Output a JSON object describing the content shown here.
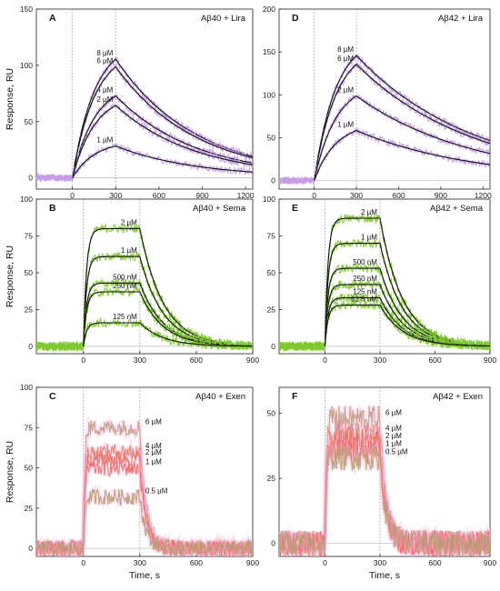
{
  "figure": {
    "ylabel": "Response, RU",
    "xlabel": "Time, s"
  },
  "chart_data": [
    {
      "id": "A",
      "type": "line",
      "title": "Aβ40 + Lira",
      "xlim": [
        -250,
        1250
      ],
      "ylim": [
        -10,
        150
      ],
      "xticks": [
        0,
        300,
        600,
        900,
        1200
      ],
      "yticks": [
        0,
        50,
        100,
        150
      ],
      "injection_start": 0,
      "injection_end": 300,
      "dissociation_end": 1250,
      "kon": 0.0065,
      "koff": 0.0018,
      "fit_curves": true,
      "noise": 3,
      "color": "#c59ae6",
      "fit_color": "#111111",
      "series": [
        {
          "name": "8 µM",
          "plateau": 123
        },
        {
          "name": "6 µM",
          "plateau": 115
        },
        {
          "name": "4 µM",
          "plateau": 85
        },
        {
          "name": "2 µM",
          "plateau": 75
        },
        {
          "name": "1 µM",
          "plateau": 33
        }
      ]
    },
    {
      "id": "D",
      "type": "line",
      "title": "Aβ42 + Lira",
      "xlim": [
        -250,
        1250
      ],
      "ylim": [
        -10,
        200
      ],
      "xticks": [
        0,
        300,
        600,
        900,
        1200
      ],
      "yticks": [
        0,
        50,
        100,
        150,
        200
      ],
      "injection_start": 0,
      "injection_end": 300,
      "dissociation_end": 1250,
      "kon": 0.0065,
      "koff": 0.0012,
      "fit_curves": true,
      "noise": 4,
      "color": "#c59ae6",
      "fit_color": "#111111",
      "series": [
        {
          "name": "8 µM",
          "plateau": 170
        },
        {
          "name": "6 µM",
          "plateau": 158
        },
        {
          "name": "2 µM",
          "plateau": 115
        },
        {
          "name": "1 µM",
          "plateau": 68
        }
      ]
    },
    {
      "id": "B",
      "type": "line",
      "title": "Aβ40 + Sema",
      "xlim": [
        -250,
        900
      ],
      "ylim": [
        -5,
        100
      ],
      "xticks": [
        0,
        300,
        600,
        900
      ],
      "yticks": [
        0,
        25,
        50,
        75,
        100
      ],
      "injection_start": 0,
      "injection_end": 300,
      "dissociation_end": 900,
      "kon": 0.06,
      "koff": 0.008,
      "fit_curves": true,
      "noise": 3,
      "color": "#7fc832",
      "fit_color": "#111111",
      "series": [
        {
          "name": "2 µM",
          "plateau": 80
        },
        {
          "name": "1 µM",
          "plateau": 61
        },
        {
          "name": "500 nM",
          "plateau": 43
        },
        {
          "name": "250 nM",
          "plateau": 37
        },
        {
          "name": "125 nM",
          "plateau": 16
        }
      ]
    },
    {
      "id": "E",
      "type": "line",
      "title": "Aβ42 + Sema",
      "xlim": [
        -250,
        900
      ],
      "ylim": [
        -5,
        100
      ],
      "xticks": [
        0,
        300,
        600,
        900
      ],
      "yticks": [
        0,
        25,
        50,
        75,
        100
      ],
      "injection_start": 0,
      "injection_end": 300,
      "dissociation_end": 900,
      "kon": 0.06,
      "koff": 0.008,
      "fit_curves": true,
      "noise": 3,
      "color": "#7fc832",
      "fit_color": "#111111",
      "series": [
        {
          "name": "2 µM",
          "plateau": 87
        },
        {
          "name": "1 µM",
          "plateau": 70
        },
        {
          "name": "500 nM",
          "plateau": 53
        },
        {
          "name": "250 nM",
          "plateau": 42
        },
        {
          "name": "125 nM",
          "plateau": 33
        },
        {
          "name": "62.5 nM",
          "plateau": 28
        }
      ]
    },
    {
      "id": "C",
      "type": "line",
      "title": "Aβ40 + Exen",
      "xlim": [
        -250,
        900
      ],
      "ylim": [
        -5,
        100
      ],
      "xticks": [
        0,
        300,
        600,
        900
      ],
      "yticks": [
        0,
        25,
        50,
        75,
        100
      ],
      "injection_start": 0,
      "injection_end": 300,
      "dissociation_end": 900,
      "kon": 0.15,
      "koff": 0.03,
      "fit_curves": false,
      "noise": 5,
      "glow_color": "#f7b8de",
      "series": [
        {
          "name": "6 µM",
          "plateau": 75,
          "color": "#c49a86"
        },
        {
          "name": "4 µM",
          "plateau": 60,
          "color": "#de7f72"
        },
        {
          "name": "2 µM",
          "plateau": 56,
          "color": "#e8705a"
        },
        {
          "name": "1 µM",
          "plateau": 50,
          "color": "#ed6a6a"
        },
        {
          "name": "0.5 µM",
          "plateau": 32,
          "color": "#b89a72"
        }
      ]
    },
    {
      "id": "F",
      "type": "line",
      "title": "Aβ42 + Exen",
      "xlim": [
        -250,
        900
      ],
      "ylim": [
        -5,
        60
      ],
      "xticks": [
        0,
        300,
        600,
        900
      ],
      "yticks": [
        0,
        25,
        50
      ],
      "injection_start": 0,
      "injection_end": 300,
      "dissociation_end": 900,
      "kon": 0.15,
      "koff": 0.03,
      "fit_curves": false,
      "noise": 5,
      "glow_color": "#f7b8de",
      "series": [
        {
          "name": "6 µM",
          "plateau": 48,
          "color": "#c49a86"
        },
        {
          "name": "4 µM",
          "plateau": 42,
          "color": "#de7f72"
        },
        {
          "name": "2 µM",
          "plateau": 39,
          "color": "#e8705a"
        },
        {
          "name": "1 µM",
          "plateau": 36,
          "color": "#ed6a6a"
        },
        {
          "name": "0.5 µM",
          "plateau": 33,
          "color": "#b89a72"
        }
      ]
    }
  ]
}
